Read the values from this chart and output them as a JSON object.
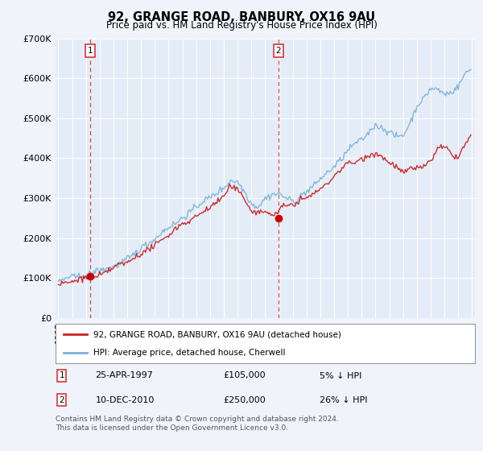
{
  "title": "92, GRANGE ROAD, BANBURY, OX16 9AU",
  "subtitle": "Price paid vs. HM Land Registry's House Price Index (HPI)",
  "ylim": [
    0,
    700000
  ],
  "yticks": [
    0,
    100000,
    200000,
    300000,
    400000,
    500000,
    600000,
    700000
  ],
  "ytick_labels": [
    "£0",
    "£100K",
    "£200K",
    "£300K",
    "£400K",
    "£500K",
    "£600K",
    "£700K"
  ],
  "background_color": "#f0f4fa",
  "plot_bg_color": "#e4edf7",
  "grid_color": "#ffffff",
  "hpi_color": "#7ab0d8",
  "price_color": "#cc2222",
  "vline_color": "#dd3333",
  "marker_color": "#cc0000",
  "legend_line1": "92, GRANGE ROAD, BANBURY, OX16 9AU (detached house)",
  "legend_line2": "HPI: Average price, detached house, Cherwell",
  "note1_label": "1",
  "note1_date": "25-APR-1997",
  "note1_price": "£105,000",
  "note1_pct": "5% ↓ HPI",
  "note2_label": "2",
  "note2_date": "10-DEC-2010",
  "note2_price": "£250,000",
  "note2_pct": "26% ↓ HPI",
  "footer": "Contains HM Land Registry data © Crown copyright and database right 2024.\nThis data is licensed under the Open Government Licence v3.0.",
  "x_start_year": 1995,
  "x_end_year": 2025,
  "sale1_year": 1997.3,
  "sale1_price": 105000,
  "sale2_year": 2010.95,
  "sale2_price": 250000
}
